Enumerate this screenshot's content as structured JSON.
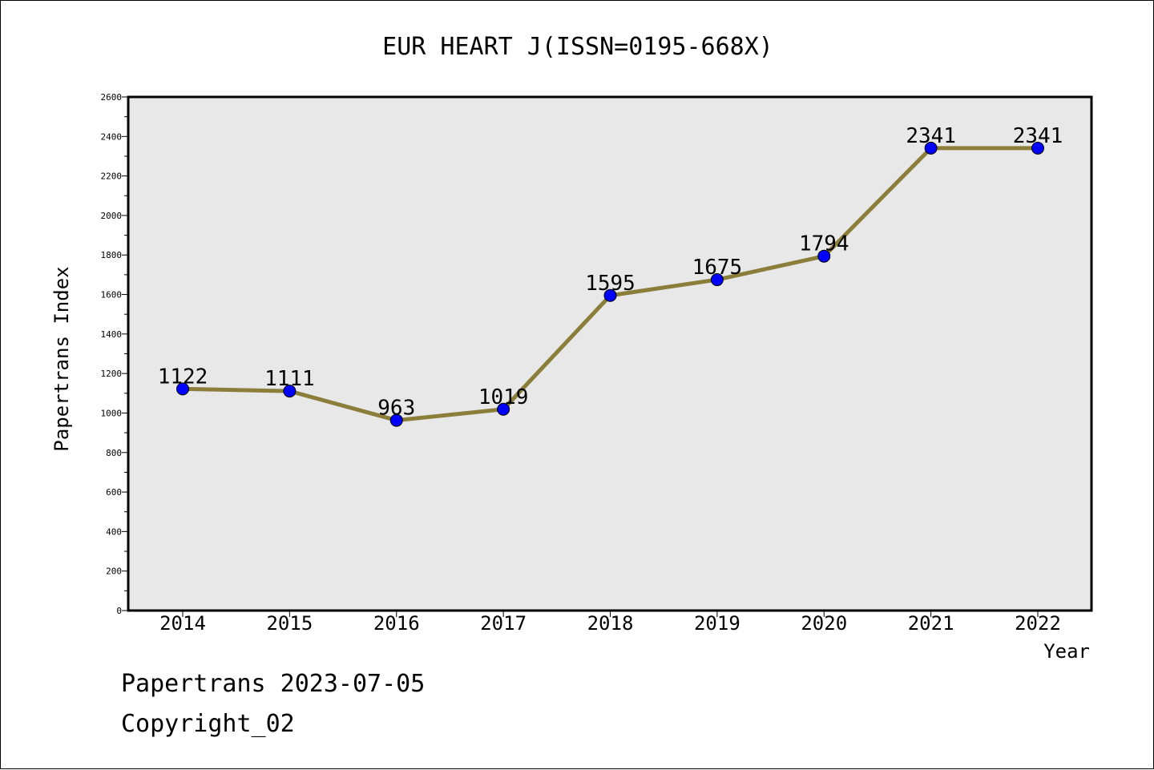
{
  "chart_data": {
    "type": "line",
    "title": "EUR HEART J(ISSN=0195-668X)",
    "xlabel": "Year",
    "ylabel": "Papertrans Index",
    "categories": [
      "2014",
      "2015",
      "2016",
      "2017",
      "2018",
      "2019",
      "2020",
      "2021",
      "2022"
    ],
    "series": [
      {
        "values": [
          1122,
          1111,
          963,
          1019,
          1595,
          1675,
          1794,
          2341,
          2341
        ]
      }
    ],
    "ylim": [
      0,
      2600
    ],
    "yticks": [
      0,
      200,
      400,
      600,
      800,
      1000,
      1200,
      1400,
      1600,
      1800,
      2000,
      2200,
      2400,
      2600
    ],
    "grid": false,
    "line_color": "#8b7d3a",
    "marker_color": "#0000ff",
    "plot_background": "#e8e8e8"
  },
  "footer": {
    "line1": "Papertrans 2023-07-05",
    "line2": "Copyright_02"
  }
}
